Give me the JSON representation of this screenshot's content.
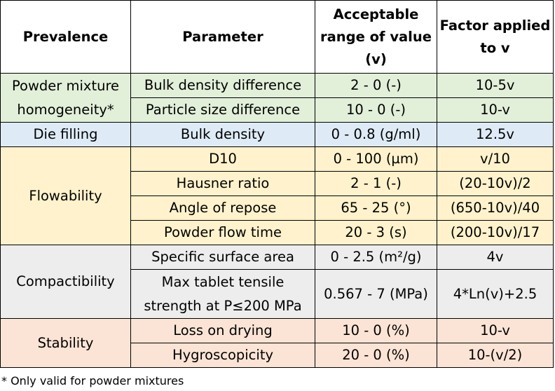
{
  "table": {
    "headers": {
      "prevalence": "Prevalence",
      "parameter": "Parameter",
      "range": "Acceptable range of value (v)",
      "factor": "Factor applied to v"
    },
    "groups": {
      "powder": "Powder mixture homogeneity*",
      "die": "Die filling",
      "flow": "Flowability",
      "compact": "Compactibility",
      "stability": "Stability"
    },
    "rows": [
      {
        "parameter": "Bulk density difference",
        "range": "2 - 0 (-)",
        "factor": "10-5v"
      },
      {
        "parameter": "Particle size difference",
        "range": "10 - 0 (-)",
        "factor": "10-v"
      },
      {
        "parameter": "Bulk density",
        "range": "0 - 0.8 (g/ml)",
        "factor": "12.5v"
      },
      {
        "parameter": "D10",
        "range": "0 - 100 (µm)",
        "factor": "v/10"
      },
      {
        "parameter": "Hausner ratio",
        "range": "2 - 1 (-)",
        "factor": "(20-10v)/2"
      },
      {
        "parameter": "Angle of repose",
        "range": "65 - 25 (°)",
        "factor": "(650-10v)/40"
      },
      {
        "parameter": "Powder flow time",
        "range": "20 - 3 (s)",
        "factor": "(200-10v)/17"
      },
      {
        "parameter": "Specific surface area",
        "range": "0 - 2.5 (m²/g)",
        "factor": "4v"
      },
      {
        "parameter": "Max tablet tensile strength at P≤200 MPa",
        "range": "0.567 - 7 (MPa)",
        "factor": "4*Ln(v)+2.5"
      },
      {
        "parameter": "Loss on drying",
        "range": "10 - 0 (%)",
        "factor": "10-v"
      },
      {
        "parameter": "Hygroscopicity",
        "range": "20 - 0 (%)",
        "factor": "10-(v/2)"
      }
    ],
    "colors": {
      "green": "#e2efd9",
      "blue": "#deebf6",
      "yellow": "#fff2cc",
      "grey": "#ededed",
      "red": "#fbe4d5"
    }
  },
  "footnote": "* Only valid for powder mixtures"
}
